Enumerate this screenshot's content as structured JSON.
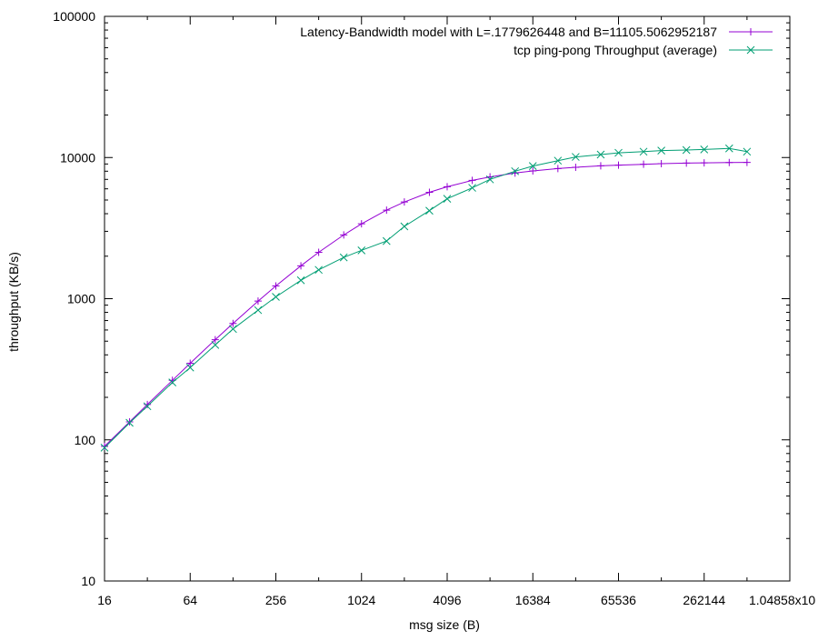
{
  "chart_data": {
    "type": "line",
    "title": "",
    "xlabel": "msg size (B)",
    "ylabel": "throughput (KB/s)",
    "x_scale": "log2",
    "y_scale": "log10",
    "xlim": [
      16,
      1048576
    ],
    "ylim": [
      10,
      100000
    ],
    "x_ticks": [
      16,
      64,
      256,
      1024,
      4096,
      16384,
      65536,
      262144,
      1048576
    ],
    "x_tick_labels": [
      "16",
      "64",
      "256",
      "1024",
      "4096",
      "16384",
      "65536",
      "262144",
      "1.04858x10"
    ],
    "y_ticks": [
      10,
      100,
      1000,
      10000,
      100000
    ],
    "y_tick_labels": [
      "10",
      "100",
      "1000",
      "10000",
      "100000"
    ],
    "grid": false,
    "legend_position": "top-right",
    "series": [
      {
        "name": "Latency-Bandwidth model with L=.1779626448 and B=11105.5062952187",
        "color": "#9400d3",
        "marker": "plus",
        "x": [
          16,
          24,
          32,
          48,
          64,
          96,
          128,
          192,
          256,
          384,
          512,
          768,
          1024,
          1536,
          2048,
          3072,
          4096,
          6144,
          8192,
          12288,
          16384,
          24576,
          32768,
          49152,
          65536,
          98304,
          131072,
          196608,
          262144,
          393216,
          524288
        ],
        "y": [
          90,
          134,
          178,
          264,
          349,
          512,
          668,
          961,
          1230,
          1710,
          2130,
          2830,
          3390,
          4240,
          4840,
          5670,
          6210,
          6890,
          7290,
          7760,
          8030,
          8350,
          8530,
          8730,
          8840,
          8960,
          9050,
          9130,
          9170,
          9220,
          9240
        ]
      },
      {
        "name": "tcp ping-pong Throughput (average)",
        "color": "#009e73",
        "marker": "x",
        "x": [
          16,
          24,
          32,
          48,
          64,
          96,
          128,
          192,
          256,
          384,
          512,
          768,
          1024,
          1536,
          2048,
          3072,
          4096,
          6144,
          8192,
          12288,
          16384,
          24576,
          32768,
          49152,
          65536,
          98304,
          131072,
          196608,
          262144,
          393216,
          524288
        ],
        "y": [
          88,
          132,
          173,
          255,
          325,
          470,
          610,
          830,
          1030,
          1350,
          1600,
          1960,
          2200,
          2560,
          3250,
          4200,
          5100,
          6100,
          7000,
          8000,
          8700,
          9500,
          10100,
          10500,
          10800,
          11000,
          11200,
          11300,
          11400,
          11600,
          11000
        ]
      }
    ]
  }
}
